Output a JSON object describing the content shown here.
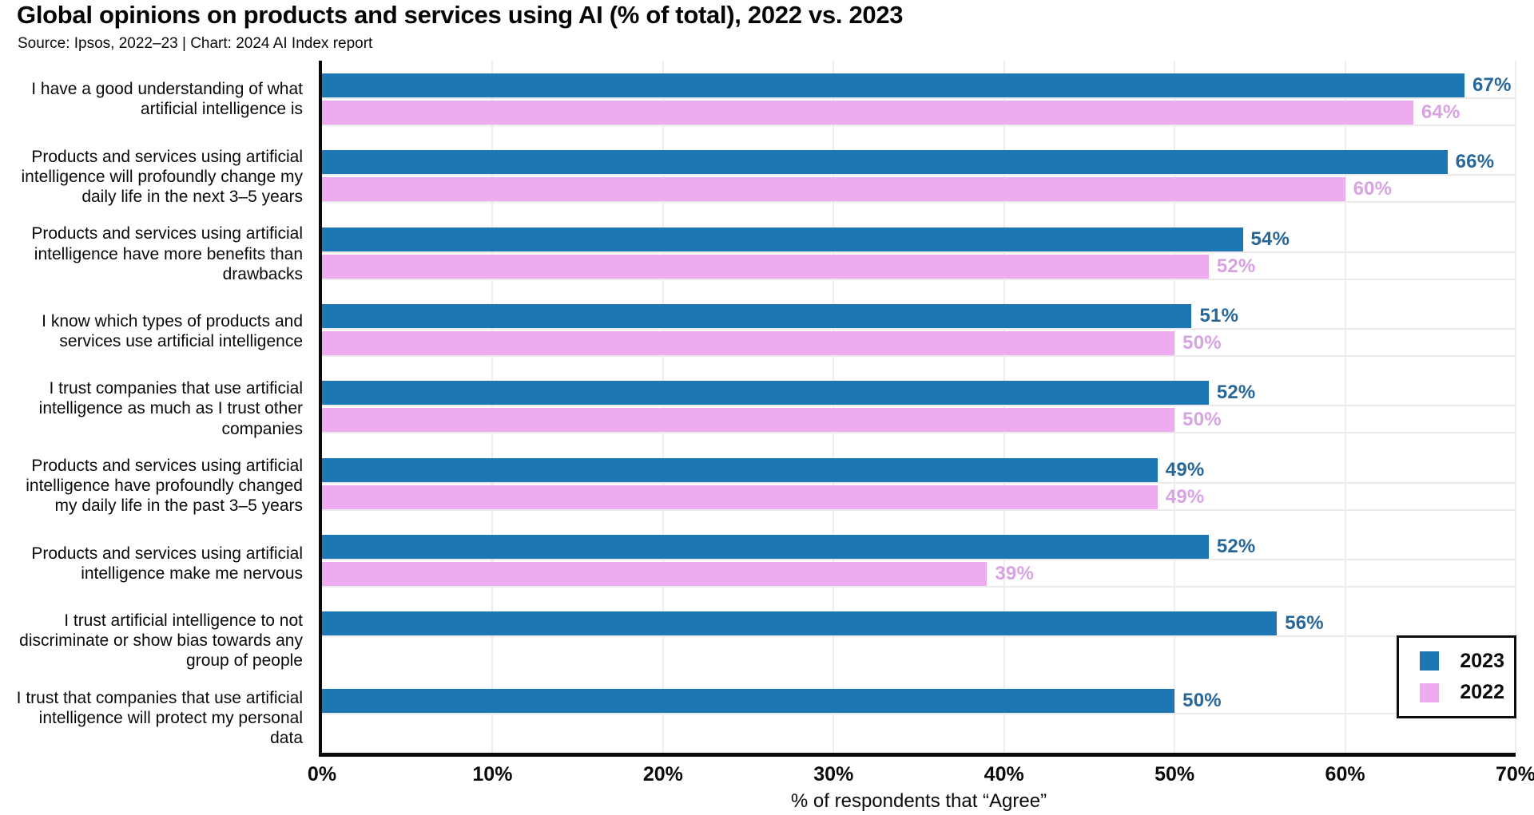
{
  "chart_data": {
    "type": "bar",
    "orientation": "horizontal",
    "title": "Global opinions on products and services using AI (% of total), 2022 vs. 2023",
    "source": "Source: Ipsos, 2022–23 | Chart: 2024 AI Index report",
    "xlabel": "% of respondents that “Agree”",
    "xlim": [
      0,
      70
    ],
    "x_tick_values": [
      0,
      10,
      20,
      30,
      40,
      50,
      60,
      70
    ],
    "x_tick_labels": [
      "0%",
      "10%",
      "20%",
      "30%",
      "40%",
      "50%",
      "60%",
      "70%"
    ],
    "grid": true,
    "legend_position": "bottom-right",
    "value_label_suffix": "%",
    "categories": [
      "I have a good understanding of what artificial intelligence is",
      "Products and services using artificial intelligence will profoundly change my daily life in the next 3–5 years",
      "Products and services using artificial intelligence have more benefits than drawbacks",
      "I know which types of products and services use artificial intelligence",
      "I trust companies that use artificial intelligence as much as I trust other companies",
      "Products and services using artificial intelligence have profoundly changed my daily life in the past 3–5 years",
      "Products and services using artificial intelligence make me nervous",
      "I trust artificial intelligence to not discriminate or show bias towards any group of people",
      "I trust that companies that use artificial intelligence will protect my personal data"
    ],
    "series": [
      {
        "name": "2023",
        "color": "#1d77b4",
        "label_color": "#27679a",
        "values": [
          67,
          66,
          54,
          51,
          52,
          49,
          52,
          56,
          50
        ]
      },
      {
        "name": "2022",
        "color": "#eeacf0",
        "label_color": "#d7a3e3",
        "values": [
          64,
          60,
          52,
          50,
          50,
          49,
          39,
          null,
          null
        ]
      }
    ]
  },
  "colors": {
    "axis": "#0a0a0a",
    "gridline": "#ededed",
    "background": "#ffffff"
  }
}
